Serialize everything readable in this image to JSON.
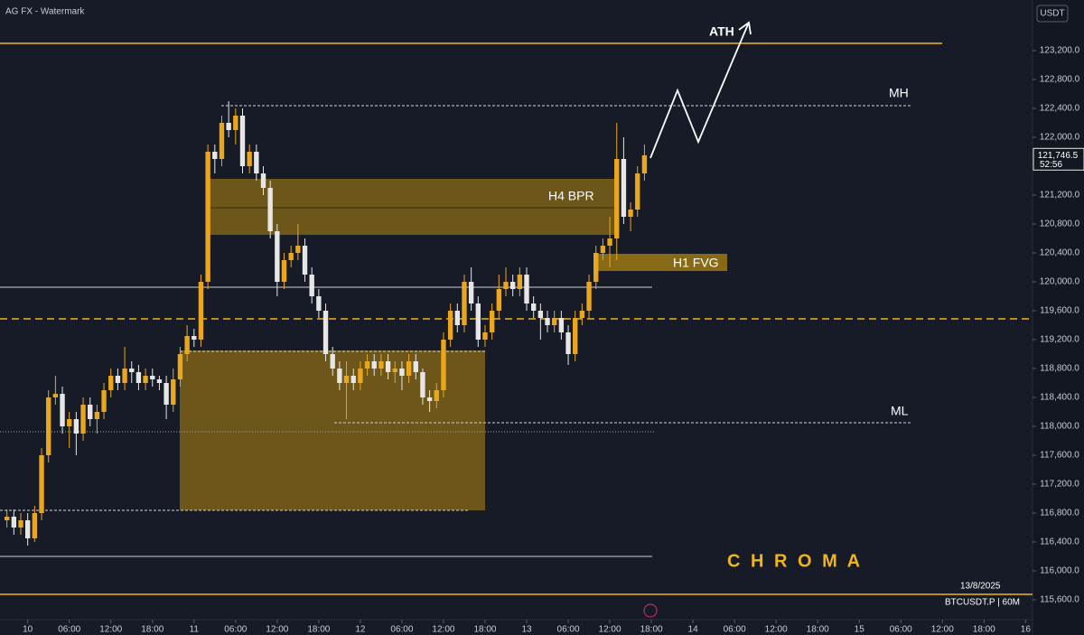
{
  "chart_data": {
    "type": "candlestick",
    "watermark": "AG FX - Watermark",
    "currency": "USDT",
    "countdown": "52:56",
    "date_label": "13/8/2025",
    "symbol": "BTCUSDT.P | 60M",
    "brand": "C H R O M A",
    "annotations": {
      "ath": "ATH",
      "mh": "MH",
      "ml": "ML",
      "h4": "H4 BPR",
      "h1": "H1 FVG"
    },
    "last_price": {
      "value": 121746.5,
      "label": "121,746.5"
    },
    "up_color": "#eaa61c",
    "down_color": "#e6e6e6",
    "ylim": [
      115400,
      123900
    ],
    "yticks": [
      {
        "value": 115600,
        "label": "115,600.0"
      },
      {
        "value": 116000,
        "label": "116,000.0"
      },
      {
        "value": 116400,
        "label": "116,400.0"
      },
      {
        "value": 116800,
        "label": "116,800.0"
      },
      {
        "value": 117200,
        "label": "117,200.0"
      },
      {
        "value": 117600,
        "label": "117,600.0"
      },
      {
        "value": 118000,
        "label": "118,000.0"
      },
      {
        "value": 118400,
        "label": "118,400.0"
      },
      {
        "value": 118800,
        "label": "118,800.0"
      },
      {
        "value": 119200,
        "label": "119,200.0"
      },
      {
        "value": 119600,
        "label": "119,600.0"
      },
      {
        "value": 120000,
        "label": "120,000.0"
      },
      {
        "value": 120400,
        "label": "120,400.0"
      },
      {
        "value": 120800,
        "label": "120,800.0"
      },
      {
        "value": 121200,
        "label": "121,200.0"
      },
      {
        "value": 122000,
        "label": "122,000.0"
      },
      {
        "value": 122400,
        "label": "122,400.0"
      },
      {
        "value": 122800,
        "label": "122,800.0"
      },
      {
        "value": 123200,
        "label": "123,200.0"
      }
    ],
    "xlim": [
      -4,
      145
    ],
    "xticks": [
      {
        "value": 0,
        "label": "10"
      },
      {
        "value": 6,
        "label": "06:00"
      },
      {
        "value": 12,
        "label": "12:00"
      },
      {
        "value": 18,
        "label": "18:00"
      },
      {
        "value": 24,
        "label": "11"
      },
      {
        "value": 30,
        "label": "06:00"
      },
      {
        "value": 36,
        "label": "12:00"
      },
      {
        "value": 42,
        "label": "18:00"
      },
      {
        "value": 48,
        "label": "12"
      },
      {
        "value": 54,
        "label": "06:00"
      },
      {
        "value": 60,
        "label": "12:00"
      },
      {
        "value": 66,
        "label": "18:00"
      },
      {
        "value": 72,
        "label": "13"
      },
      {
        "value": 78,
        "label": "06:00"
      },
      {
        "value": 84,
        "label": "12:00"
      },
      {
        "value": 90,
        "label": "18:00"
      },
      {
        "value": 96,
        "label": "14"
      },
      {
        "value": 102,
        "label": "06:00"
      },
      {
        "value": 108,
        "label": "12:00"
      },
      {
        "value": 114,
        "label": "18:00"
      },
      {
        "value": 120,
        "label": "15"
      },
      {
        "value": 126,
        "label": "06:00"
      },
      {
        "value": 132,
        "label": "12:00"
      },
      {
        "value": 138,
        "label": "18:00"
      },
      {
        "value": 144,
        "label": "16"
      }
    ],
    "x": [
      -3,
      -2,
      -1,
      0,
      1,
      2,
      3,
      4,
      5,
      6,
      7,
      8,
      9,
      10,
      11,
      12,
      13,
      14,
      15,
      16,
      17,
      18,
      19,
      20,
      21,
      22,
      23,
      24,
      25,
      26,
      27,
      28,
      29,
      30,
      31,
      32,
      33,
      34,
      35,
      36,
      37,
      38,
      39,
      40,
      41,
      42,
      43,
      44,
      45,
      46,
      47,
      48,
      49,
      50,
      51,
      52,
      53,
      54,
      55,
      56,
      57,
      58,
      59,
      60,
      61,
      62,
      63,
      64,
      65,
      66,
      67,
      68,
      69,
      70,
      71,
      72,
      73,
      74,
      75,
      76,
      77,
      78,
      79,
      80,
      81,
      82,
      83,
      84,
      85,
      86,
      87,
      88,
      89
    ],
    "ohlc": [
      [
        116700,
        116850,
        116600,
        116750
      ],
      [
        116750,
        116850,
        116500,
        116600
      ],
      [
        116600,
        116800,
        116500,
        116700
      ],
      [
        116700,
        116800,
        116350,
        116450
      ],
      [
        116450,
        116900,
        116400,
        116800
      ],
      [
        116800,
        117700,
        116700,
        117600
      ],
      [
        117600,
        118500,
        117500,
        118400
      ],
      [
        118400,
        118700,
        118300,
        118450
      ],
      [
        118450,
        118550,
        117900,
        118000
      ],
      [
        118000,
        118200,
        117700,
        118100
      ],
      [
        118100,
        118200,
        117600,
        117900
      ],
      [
        117900,
        118400,
        117800,
        118300
      ],
      [
        118300,
        118400,
        118000,
        118100
      ],
      [
        118100,
        118300,
        117900,
        118200
      ],
      [
        118200,
        118600,
        118100,
        118500
      ],
      [
        118500,
        118800,
        118400,
        118700
      ],
      [
        118700,
        118800,
        118500,
        118600
      ],
      [
        118600,
        119100,
        118500,
        118800
      ],
      [
        118800,
        118900,
        118600,
        118750
      ],
      [
        118750,
        118850,
        118500,
        118600
      ],
      [
        118600,
        118800,
        118500,
        118700
      ],
      [
        118700,
        118800,
        118550,
        118650
      ],
      [
        118650,
        118700,
        118500,
        118600
      ],
      [
        118600,
        118700,
        118100,
        118300
      ],
      [
        118300,
        118800,
        118200,
        118650
      ],
      [
        118650,
        119100,
        118550,
        119000
      ],
      [
        119000,
        119400,
        118900,
        119250
      ],
      [
        119250,
        119350,
        119100,
        119200
      ],
      [
        119200,
        120100,
        119100,
        120000
      ],
      [
        120000,
        121900,
        119900,
        121800
      ],
      [
        121800,
        121900,
        121500,
        121700
      ],
      [
        121700,
        122300,
        121600,
        122200
      ],
      [
        122200,
        122500,
        122000,
        122100
      ],
      [
        122100,
        122400,
        121900,
        122300
      ],
      [
        122300,
        122400,
        121500,
        121600
      ],
      [
        121600,
        121900,
        121500,
        121800
      ],
      [
        121800,
        121900,
        121400,
        121500
      ],
      [
        121500,
        121600,
        121200,
        121300
      ],
      [
        121300,
        121400,
        120600,
        120700
      ],
      [
        120700,
        120800,
        119800,
        120000
      ],
      [
        120000,
        120400,
        119900,
        120300
      ],
      [
        120300,
        120500,
        120200,
        120400
      ],
      [
        120400,
        120800,
        120300,
        120500
      ],
      [
        120500,
        120600,
        120000,
        120100
      ],
      [
        120100,
        120200,
        119700,
        119800
      ],
      [
        119800,
        119900,
        119500,
        119600
      ],
      [
        119600,
        119700,
        118900,
        119000
      ],
      [
        119000,
        119100,
        118700,
        118800
      ],
      [
        118800,
        118900,
        118500,
        118600
      ],
      [
        118600,
        118900,
        118100,
        118700
      ],
      [
        118700,
        118800,
        118500,
        118600
      ],
      [
        118600,
        118900,
        118500,
        118800
      ],
      [
        118800,
        119000,
        118700,
        118900
      ],
      [
        118900,
        119000,
        118700,
        118800
      ],
      [
        118800,
        119000,
        118700,
        118900
      ],
      [
        118900,
        119000,
        118650,
        118750
      ],
      [
        118750,
        118900,
        118600,
        118800
      ],
      [
        118800,
        118900,
        118500,
        118700
      ],
      [
        118700,
        119000,
        118600,
        118900
      ],
      [
        118900,
        119000,
        118650,
        118750
      ],
      [
        118750,
        118800,
        118300,
        118400
      ],
      [
        118400,
        118500,
        118200,
        118350
      ],
      [
        118350,
        118600,
        118250,
        118500
      ],
      [
        118500,
        119300,
        118400,
        119200
      ],
      [
        119200,
        119700,
        119100,
        119600
      ],
      [
        119600,
        119700,
        119300,
        119400
      ],
      [
        119400,
        120100,
        119300,
        120000
      ],
      [
        120000,
        120200,
        119600,
        119700
      ],
      [
        119700,
        119800,
        119100,
        119200
      ],
      [
        119200,
        119400,
        119100,
        119300
      ],
      [
        119300,
        119700,
        119200,
        119600
      ],
      [
        119600,
        120100,
        119500,
        119900
      ],
      [
        119900,
        120200,
        119800,
        120000
      ],
      [
        120000,
        120100,
        119800,
        119900
      ],
      [
        119900,
        120200,
        119800,
        120100
      ],
      [
        120100,
        120200,
        119600,
        119700
      ],
      [
        119700,
        119800,
        119500,
        119600
      ],
      [
        119600,
        119700,
        119200,
        119500
      ],
      [
        119500,
        119600,
        119300,
        119400
      ],
      [
        119400,
        119600,
        119300,
        119500
      ],
      [
        119500,
        119600,
        119200,
        119300
      ],
      [
        119300,
        119400,
        118850,
        119000
      ],
      [
        119000,
        119600,
        118900,
        119500
      ],
      [
        119500,
        119700,
        119400,
        119600
      ],
      [
        119600,
        120100,
        119500,
        120000
      ],
      [
        120000,
        120500,
        119900,
        120400
      ],
      [
        120400,
        120600,
        120300,
        120500
      ],
      [
        120500,
        120900,
        120200,
        120600
      ],
      [
        120600,
        122200,
        120300,
        121700
      ],
      [
        121700,
        122000,
        120800,
        120900
      ],
      [
        120900,
        121100,
        120700,
        121000
      ],
      [
        121000,
        121600,
        120900,
        121500
      ],
      [
        121500,
        121900,
        121400,
        121750
      ]
    ]
  }
}
